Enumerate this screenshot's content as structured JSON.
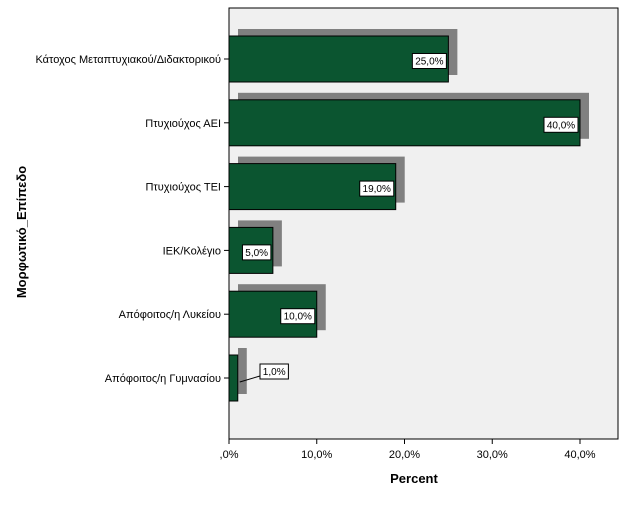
{
  "chart_data": {
    "type": "bar",
    "orientation": "horizontal",
    "categories": [
      "Κάτοχος Μεταπτυχιακού/Διδακτορικού",
      "Πτυχιούχος ΑΕΙ",
      "Πτυχιούχος ΤΕΙ",
      "ΙΕΚ/Κολέγιο",
      "Απόφοιτος/η Λυκείου",
      "Απόφοιτος/η Γυμνασίου"
    ],
    "values": [
      25.0,
      40.0,
      19.0,
      5.0,
      10.0,
      1.0
    ],
    "data_labels": [
      "25,0%",
      "40,0%",
      "19,0%",
      "5,0%",
      "10,0%",
      "1,0%"
    ],
    "xlabel": "Percent",
    "ylabel": "Μορφωτικό_Επίπεδο",
    "xlim": [
      0,
      44
    ],
    "ticks": [
      0,
      10,
      20,
      30,
      40
    ],
    "tick_labels": [
      ",0%",
      "10,0%",
      "20,0%",
      "30,0%",
      "40,0%"
    ],
    "grid": false,
    "colors": {
      "bar": "#0b5530",
      "shadow": "#808080",
      "plot_background": "#f0f0f0"
    }
  }
}
